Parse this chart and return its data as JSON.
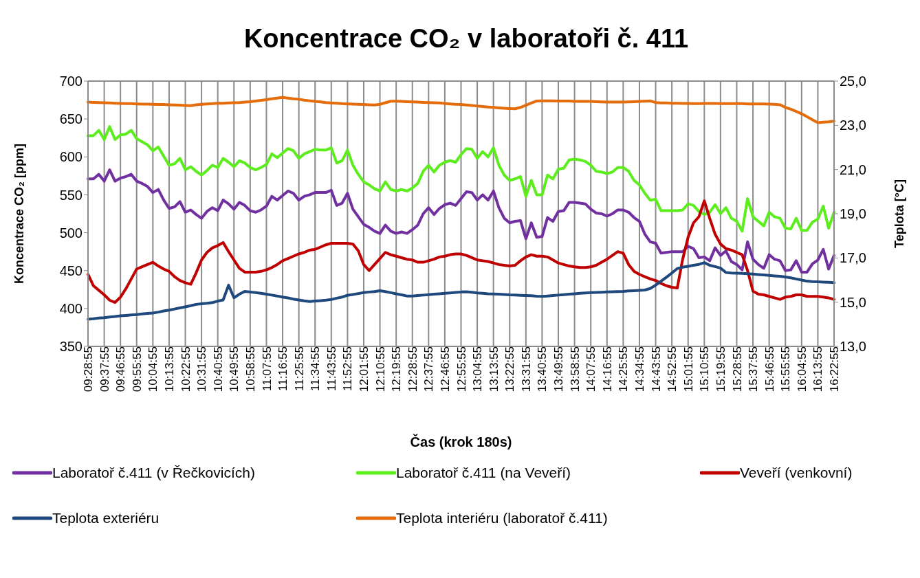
{
  "chart_data": {
    "type": "line",
    "title": "Koncentrace CO₂ v laboratoři č. 411",
    "xlabel": "Čas (krok 180s)",
    "ylabel": "Koncentrace CO₂ [ppm]",
    "y2label": "Teplota [°C]",
    "categories": [
      "09:28:55",
      null,
      null,
      "09:37:55",
      null,
      null,
      "09:46:55",
      null,
      null,
      "09:55:55",
      null,
      null,
      "10:04:55",
      null,
      null,
      "10:13:55",
      null,
      null,
      "10:22:55",
      null,
      null,
      "10:31:55",
      null,
      null,
      "10:40:55",
      null,
      null,
      "10:49:55",
      null,
      null,
      "10:58:55",
      null,
      null,
      "11:07:55",
      null,
      null,
      "11:16:55",
      null,
      null,
      "11:25:55",
      null,
      null,
      "11:34:55",
      null,
      null,
      "11:43:55",
      null,
      null,
      "11:52:55",
      null,
      null,
      "12:01:55",
      null,
      null,
      "12:10:55",
      null,
      null,
      "12:19:55",
      null,
      null,
      "12:28:55",
      null,
      null,
      "12:37:55",
      null,
      null,
      "12:46:55",
      null,
      null,
      "12:55:55",
      null,
      null,
      "13:04:55",
      null,
      null,
      "13:13:55",
      null,
      null,
      "13:22:55",
      null,
      null,
      "13:31:55",
      null,
      null,
      "13:40:55",
      null,
      null,
      "13:49:55",
      null,
      null,
      "13:58:55",
      null,
      null,
      "14:07:55",
      null,
      null,
      "14:16:55",
      null,
      null,
      "14:25:55",
      null,
      null,
      "14:34:55",
      null,
      null,
      "14:43:55",
      null,
      null,
      "14:52:55",
      null,
      null,
      "15:01:55",
      null,
      null,
      "15:10:55",
      null,
      null,
      "15:19:55",
      null,
      null,
      "15:28:55",
      null,
      null,
      "15:37:55",
      null,
      null,
      "15:46:55",
      null,
      null,
      "15:55:55",
      null,
      null,
      "16:04:55",
      null,
      null,
      "16:13:55",
      null,
      null,
      "16:22:55"
    ],
    "series": [
      {
        "name": "Laboratoř č.411 (v Řečkovicích)",
        "color": "#7030a0",
        "values": [
          571,
          571,
          577,
          568,
          583,
          568,
          572,
          574,
          577,
          568,
          565,
          561,
          553,
          557,
          543,
          532,
          534,
          541,
          527,
          530,
          524,
          519,
          528,
          533,
          529,
          543,
          538,
          531,
          540,
          536,
          529,
          527,
          530,
          535,
          548,
          543,
          549,
          555,
          552,
          543,
          548,
          550,
          553,
          553,
          553,
          556,
          536,
          539,
          552,
          531,
          521,
          511,
          507,
          502,
          499,
          510,
          502,
          499,
          501,
          499,
          504,
          510,
          525,
          533,
          524,
          532,
          537,
          539,
          536,
          545,
          554,
          553,
          543,
          550,
          543,
          555,
          533,
          519,
          513,
          515,
          516,
          492,
          513,
          494,
          495,
          520,
          515,
          528,
          529,
          540,
          540,
          539,
          538,
          531,
          526,
          525,
          522,
          525,
          530,
          530,
          527,
          520,
          515,
          498,
          488,
          486,
          473,
          474,
          475,
          475,
          475,
          482,
          479,
          467,
          468,
          463,
          480,
          470,
          476,
          462,
          458,
          451,
          488,
          465,
          458,
          453,
          471,
          465,
          463,
          450,
          451,
          463,
          448,
          448,
          459,
          464,
          478,
          452,
          470
        ]
      },
      {
        "name": "Laboratoř č.411 (na Veveří)",
        "color": "#5cee1c",
        "values": [
          628,
          628,
          635,
          623,
          640,
          623,
          629,
          630,
          635,
          624,
          620,
          616,
          608,
          613,
          601,
          589,
          591,
          598,
          583,
          587,
          581,
          576,
          582,
          589,
          586,
          598,
          593,
          587,
          595,
          592,
          586,
          583,
          586,
          590,
          604,
          599,
          605,
          611,
          608,
          598,
          604,
          607,
          610,
          609,
          609,
          612,
          592,
          595,
          609,
          589,
          577,
          567,
          563,
          558,
          555,
          567,
          557,
          555,
          557,
          555,
          559,
          565,
          581,
          589,
          580,
          589,
          593,
          595,
          593,
          603,
          611,
          610,
          598,
          607,
          600,
          612,
          589,
          576,
          569,
          571,
          574,
          548,
          569,
          550,
          550,
          576,
          571,
          584,
          585,
          596,
          597,
          596,
          594,
          589,
          581,
          580,
          578,
          580,
          586,
          586,
          581,
          569,
          563,
          552,
          543,
          544,
          529,
          529,
          529,
          529,
          530,
          538,
          536,
          528,
          524,
          527,
          537,
          525,
          533,
          519,
          515,
          502,
          545,
          521,
          515,
          509,
          527,
          521,
          519,
          506,
          505,
          519,
          503,
          503,
          514,
          518,
          535,
          506,
          527
        ]
      },
      {
        "name": "Veveří (venkovní)",
        "color": "#c00000",
        "values": [
          445,
          430,
          424,
          418,
          411,
          408,
          415,
          426,
          439,
          452,
          455,
          458,
          461,
          456,
          452,
          449,
          442,
          437,
          434,
          432,
          447,
          464,
          474,
          480,
          483,
          487,
          475,
          464,
          453,
          448,
          448,
          448,
          449,
          451,
          454,
          458,
          463,
          466,
          469,
          472,
          474,
          477,
          478,
          481,
          484,
          486,
          486,
          486,
          486,
          485,
          476,
          458,
          450,
          458,
          466,
          474,
          471,
          469,
          467,
          465,
          464,
          461,
          461,
          463,
          465,
          468,
          469,
          471,
          472,
          472,
          470,
          467,
          464,
          463,
          462,
          460,
          458,
          457,
          456,
          457,
          463,
          468,
          471,
          469,
          469,
          468,
          464,
          460,
          458,
          456,
          455,
          454,
          454,
          455,
          457,
          461,
          465,
          470,
          475,
          473,
          458,
          449,
          445,
          442,
          439,
          437,
          433,
          430,
          428,
          427,
          465,
          494,
          513,
          521,
          542,
          519,
          498,
          485,
          479,
          477,
          474,
          471,
          450,
          423,
          419,
          418,
          416,
          414,
          412,
          415,
          416,
          418,
          418,
          416,
          416,
          416,
          415,
          414,
          412
        ]
      },
      {
        "name": "Teplota exteriéru",
        "color": "#1f497d",
        "axis": "y2",
        "values": [
          14.23,
          14.25,
          14.28,
          14.3,
          14.33,
          14.35,
          14.38,
          14.4,
          14.42,
          14.44,
          14.47,
          14.49,
          14.51,
          14.55,
          14.6,
          14.64,
          14.69,
          14.74,
          14.79,
          14.84,
          14.9,
          14.93,
          14.95,
          14.98,
          15.05,
          15.1,
          15.77,
          15.2,
          15.36,
          15.49,
          15.46,
          15.43,
          15.4,
          15.36,
          15.32,
          15.28,
          15.23,
          15.19,
          15.14,
          15.1,
          15.06,
          15.03,
          15.05,
          15.07,
          15.09,
          15.12,
          15.18,
          15.23,
          15.31,
          15.35,
          15.39,
          15.43,
          15.46,
          15.48,
          15.52,
          15.48,
          15.43,
          15.38,
          15.33,
          15.28,
          15.28,
          15.3,
          15.32,
          15.34,
          15.36,
          15.38,
          15.4,
          15.42,
          15.44,
          15.46,
          15.47,
          15.45,
          15.42,
          15.4,
          15.38,
          15.37,
          15.36,
          15.35,
          15.33,
          15.32,
          15.31,
          15.3,
          15.29,
          15.27,
          15.26,
          15.28,
          15.3,
          15.32,
          15.34,
          15.36,
          15.38,
          15.4,
          15.42,
          15.43,
          15.44,
          15.45,
          15.46,
          15.47,
          15.48,
          15.49,
          15.51,
          15.52,
          15.53,
          15.55,
          15.62,
          15.77,
          15.95,
          16.13,
          16.32,
          16.52,
          16.58,
          16.62,
          16.67,
          16.71,
          16.79,
          16.67,
          16.61,
          16.54,
          16.34,
          16.32,
          16.31,
          16.3,
          16.29,
          16.27,
          16.25,
          16.23,
          16.21,
          16.19,
          16.17,
          16.14,
          16.1,
          16.05,
          16.0,
          15.95,
          15.93,
          15.92,
          15.91,
          15.9,
          15.88
        ]
      },
      {
        "name": "Teplota interiéru (laboratoř č.411)",
        "color": "#e46c0a",
        "axis": "y2",
        "values": [
          24.05,
          24.04,
          24.03,
          24.02,
          24.01,
          24.0,
          23.99,
          23.98,
          23.98,
          23.97,
          23.96,
          23.96,
          23.95,
          23.94,
          23.94,
          23.93,
          23.92,
          23.91,
          23.9,
          23.89,
          23.93,
          23.95,
          23.97,
          23.98,
          24.0,
          24.0,
          24.01,
          24.02,
          24.03,
          24.05,
          24.07,
          24.1,
          24.13,
          24.16,
          24.2,
          24.23,
          24.26,
          24.23,
          24.2,
          24.18,
          24.14,
          24.11,
          24.08,
          24.06,
          24.03,
          24.01,
          24.0,
          23.98,
          23.97,
          23.96,
          23.95,
          23.94,
          23.93,
          23.92,
          23.95,
          24.02,
          24.09,
          24.09,
          24.08,
          24.07,
          24.06,
          24.05,
          24.04,
          24.03,
          24.02,
          24.01,
          23.99,
          23.97,
          23.95,
          23.94,
          23.92,
          23.9,
          23.87,
          23.85,
          23.83,
          23.81,
          23.79,
          23.77,
          23.76,
          23.75,
          23.81,
          23.91,
          24.01,
          24.1,
          24.11,
          24.11,
          24.11,
          24.1,
          24.1,
          24.1,
          24.08,
          24.08,
          24.08,
          24.08,
          24.07,
          24.06,
          24.05,
          24.05,
          24.05,
          24.05,
          24.06,
          24.07,
          24.08,
          24.09,
          24.1,
          24.03,
          24.01,
          24.01,
          24.0,
          24.0,
          23.99,
          23.99,
          23.98,
          23.98,
          23.99,
          23.99,
          23.99,
          23.98,
          23.98,
          23.98,
          23.98,
          23.98,
          23.97,
          23.97,
          23.97,
          23.97,
          23.96,
          23.95,
          23.93,
          23.81,
          23.73,
          23.63,
          23.52,
          23.39,
          23.25,
          23.12,
          23.14,
          23.16,
          23.19
        ]
      }
    ],
    "ylim": [
      350,
      700
    ],
    "yticks": [
      350,
      400,
      450,
      500,
      550,
      600,
      650,
      700
    ],
    "y2lim": [
      13,
      25
    ],
    "y2ticks": [
      {
        "value": 13,
        "label": "13,0"
      },
      {
        "value": 15,
        "label": "15,0"
      },
      {
        "value": 17,
        "label": "17,0"
      },
      {
        "value": 19,
        "label": "19,0"
      },
      {
        "value": 21,
        "label": "21,0"
      },
      {
        "value": 23,
        "label": "23,0"
      },
      {
        "value": 25,
        "label": "25,0"
      }
    ],
    "grid": true,
    "legend": "bottom",
    "marker": "none",
    "line_style": "solid"
  }
}
